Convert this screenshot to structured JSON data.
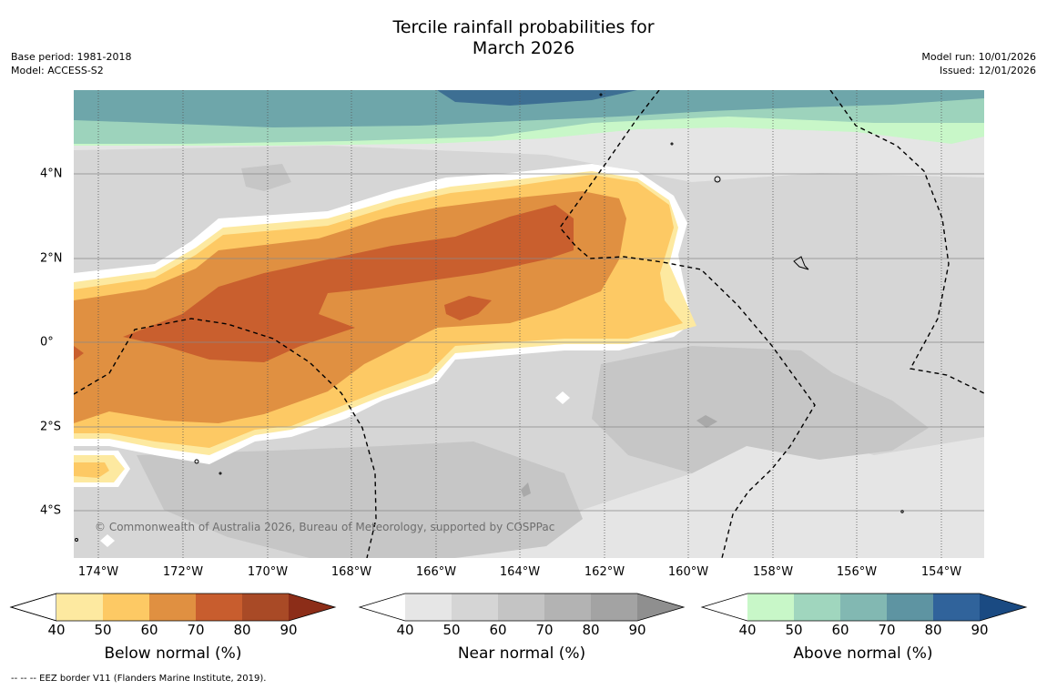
{
  "title": {
    "line1": "Tercile rainfall probabilities for",
    "line2": "March 2026"
  },
  "meta_left": {
    "base_period": "Base period: 1981-2018",
    "model": "Model: ACCESS-S2"
  },
  "meta_right": {
    "model_run": "Model run: 10/01/2026",
    "issued": "Issued: 12/01/2026"
  },
  "map": {
    "longitude_labels": [
      "174°W",
      "172°W",
      "170°W",
      "168°W",
      "166°W",
      "164°W",
      "162°W",
      "160°W",
      "158°W",
      "156°W",
      "154°W"
    ],
    "latitude_labels": [
      "4°N",
      "2°N",
      "0°",
      "2°S",
      "4°S"
    ],
    "copyright": "© Commonwealth of Australia 2026, Bureau of Meteorology, supported by COSPPac"
  },
  "colorbars": [
    {
      "title": "Below normal (%)",
      "ticks": [
        "40",
        "50",
        "60",
        "70",
        "80",
        "90"
      ],
      "colors": [
        "#fde9a0",
        "#fdc964",
        "#e09041",
        "#c85d2e",
        "#a94a26",
        "#8c2d18"
      ]
    },
    {
      "title": "Near normal (%)",
      "ticks": [
        "40",
        "50",
        "60",
        "70",
        "80",
        "90"
      ],
      "colors": [
        "#e6e6e6",
        "#d5d5d5",
        "#c4c4c4",
        "#b3b3b3",
        "#a3a3a3",
        "#8f8f8f"
      ]
    },
    {
      "title": "Above normal (%)",
      "ticks": [
        "40",
        "50",
        "60",
        "70",
        "80",
        "90"
      ],
      "colors": [
        "#c8f7c8",
        "#a0d6be",
        "#82b8b2",
        "#5e94a2",
        "#30639b",
        "#1a4a82"
      ]
    }
  ],
  "footer": "--  --  -- EEZ border V11 (Flanders Marine Institute, 2019)."
}
